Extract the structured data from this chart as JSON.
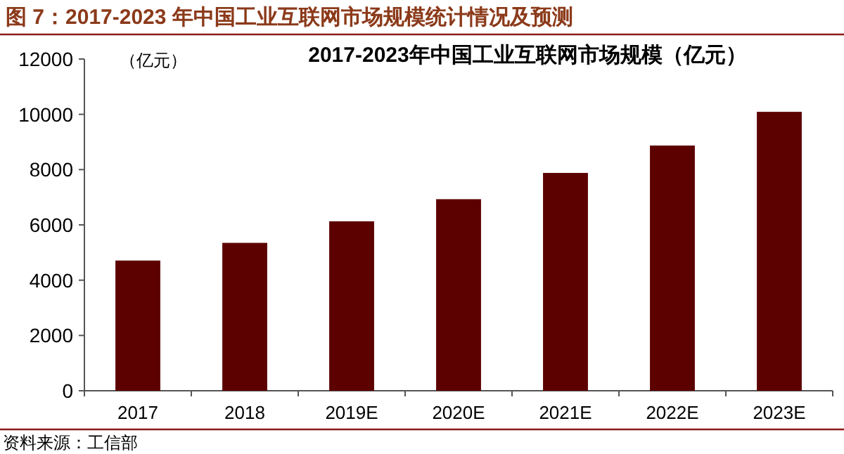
{
  "chart_data": {
    "type": "bar",
    "title": "图 7：2017-2023 年中国工业互联网市场规模统计情况及预测",
    "subtitle": "2017-2023年中国工业互联网市场规模（亿元）",
    "ylabel": "（亿元）",
    "categories": [
      "2017",
      "2018",
      "2019E",
      "2020E",
      "2021E",
      "2022E",
      "2023E"
    ],
    "values": [
      4710,
      5350,
      6130,
      6930,
      7880,
      8870,
      10090
    ],
    "color": "#5c0000",
    "ylim": [
      0,
      12000
    ],
    "yticks": [
      0,
      2000,
      4000,
      6000,
      8000,
      10000,
      12000
    ],
    "grid": false,
    "annotations": [
      "资料来源：工信部"
    ]
  }
}
